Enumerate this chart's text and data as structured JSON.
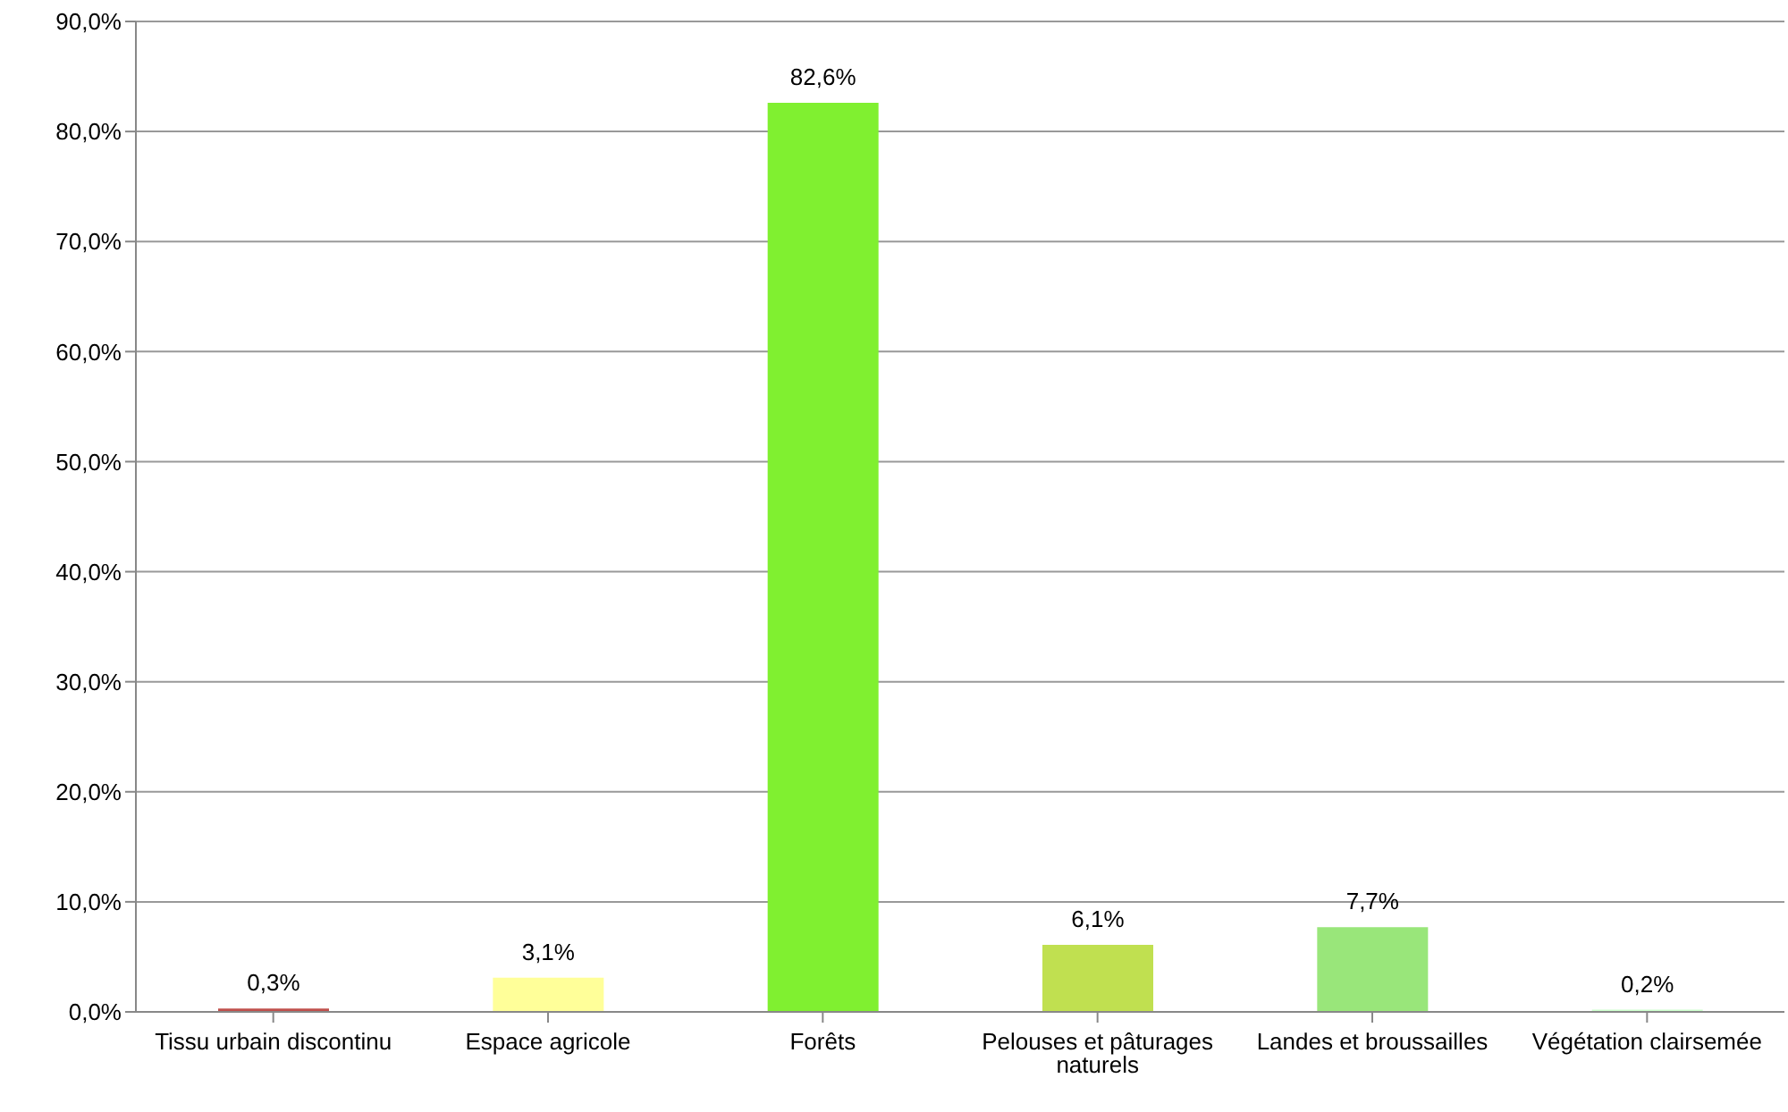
{
  "chart_data": {
    "type": "bar",
    "categories": [
      "Tissu urbain discontinu",
      "Espace agricole",
      "Forêts",
      "Pelouses et pâturages naturels",
      "Landes et broussailles",
      "Végétation clairsemée"
    ],
    "values": [
      0.3,
      3.1,
      82.6,
      6.1,
      7.7,
      0.2
    ],
    "colors": [
      "#c0504d",
      "#ffff99",
      "#80f030",
      "#c0e050",
      "#99e67a",
      "#ccffcc"
    ],
    "value_labels": [
      "0,3%",
      "3,1%",
      "82,6%",
      "6,1%",
      "7,7%",
      "0,2%"
    ],
    "ylim": [
      0,
      90
    ],
    "yticks": [
      {
        "value": 0,
        "label": "0,0%"
      },
      {
        "value": 10,
        "label": "10,0%"
      },
      {
        "value": 20,
        "label": "20,0%"
      },
      {
        "value": 30,
        "label": "30,0%"
      },
      {
        "value": 40,
        "label": "40,0%"
      },
      {
        "value": 50,
        "label": "50,0%"
      },
      {
        "value": 60,
        "label": "60,0%"
      },
      {
        "value": 70,
        "label": "70,0%"
      },
      {
        "value": 80,
        "label": "80,0%"
      },
      {
        "value": 90,
        "label": "90,0%"
      }
    ],
    "grid": "y",
    "legend": false
  }
}
